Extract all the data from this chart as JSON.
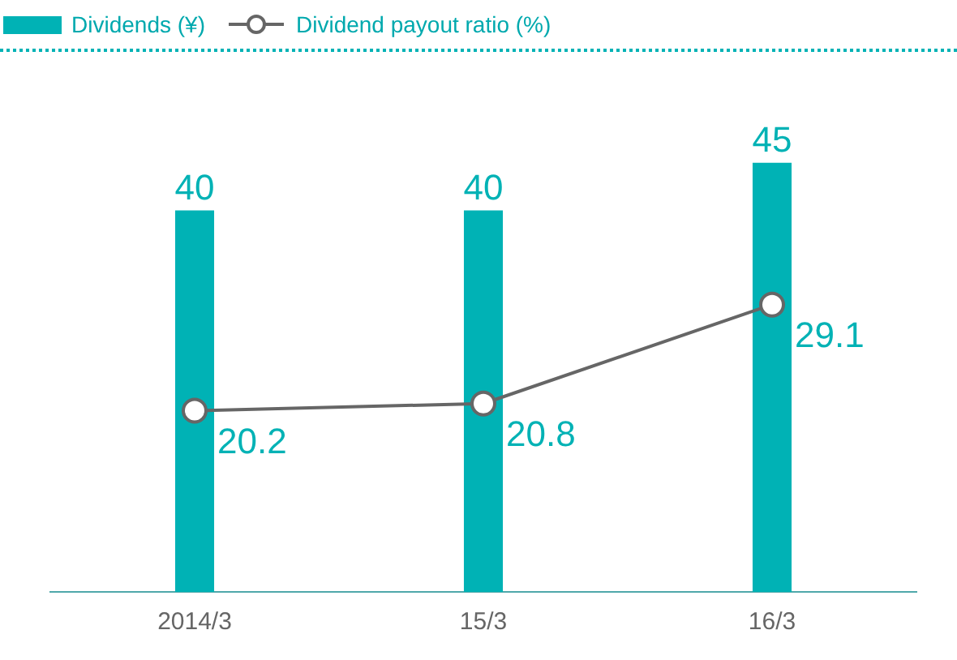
{
  "chart_data": {
    "type": "bar",
    "categories": [
      "2014/3",
      "15/3",
      "16/3"
    ],
    "series": [
      {
        "name": "Dividends (¥)",
        "color": "#00b2b5",
        "values": [
          40,
          40,
          45
        ]
      },
      {
        "name": "Dividend payout ratio (%)",
        "type": "line",
        "axis": "y2",
        "color": "#666666",
        "values": [
          20.2,
          20.8,
          29.1
        ]
      }
    ],
    "data_labels": true,
    "tick_labels": "x",
    "grid": false,
    "legend": "top left",
    "marker": "circle",
    "line_style": "solid"
  }
}
